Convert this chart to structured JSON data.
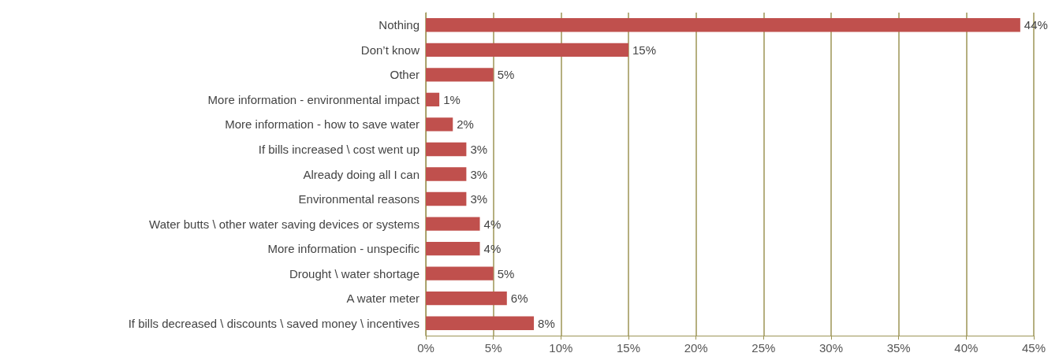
{
  "chart_data": {
    "type": "bar",
    "orientation": "horizontal",
    "categories": [
      "Nothing",
      "Don’t know",
      "Other",
      "More information - environmental impact",
      "More information - how to save water",
      "If bills increased \\ cost went up",
      "Already doing all I can",
      "Environmental reasons",
      "Water butts \\ other water saving devices or systems",
      "More information - unspecific",
      "Drought \\ water shortage",
      "A water meter",
      "If bills decreased \\ discounts \\ saved money \\ incentives"
    ],
    "values": [
      44,
      15,
      5,
      1,
      2,
      3,
      3,
      3,
      4,
      4,
      5,
      6,
      8
    ],
    "value_labels": [
      "44%",
      "15%",
      "5%",
      "1%",
      "2%",
      "3%",
      "3%",
      "3%",
      "4%",
      "4%",
      "5%",
      "6%",
      "8%"
    ],
    "color": "#c0504d",
    "xlim": [
      0,
      45
    ],
    "xticks": [
      {
        "value": 0,
        "label": "0%"
      },
      {
        "value": 5,
        "label": "5%"
      },
      {
        "value": 10,
        "label": "10%"
      },
      {
        "value": 15,
        "label": "15%"
      },
      {
        "value": 20,
        "label": "20%"
      },
      {
        "value": 25,
        "label": "25%"
      },
      {
        "value": 30,
        "label": "30%"
      },
      {
        "value": 35,
        "label": "35%"
      },
      {
        "value": 40,
        "label": "40%"
      },
      {
        "value": 45,
        "label": "45%"
      }
    ],
    "grid": "x"
  }
}
